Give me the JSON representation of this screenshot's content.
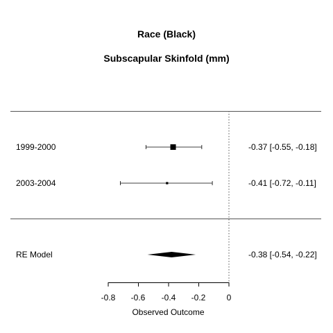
{
  "chart_data": {
    "type": "forest",
    "title": "Race (Black)",
    "subtitle": "Subscapular Skinfold (mm)",
    "xlabel": "Observed Outcome",
    "xlim": [
      -0.8,
      0
    ],
    "ticks": [
      -0.8,
      -0.6,
      -0.4,
      -0.2,
      0
    ],
    "tick_labels": [
      "-0.8",
      "-0.6",
      "-0.4",
      "-0.2",
      "0"
    ],
    "reference_line": 0,
    "studies": [
      {
        "label": "1999-2000",
        "estimate": -0.37,
        "ci_low": -0.55,
        "ci_high": -0.18,
        "weight": 1.0,
        "text": "-0.37 [-0.55, -0.18]"
      },
      {
        "label": "2003-2004",
        "estimate": -0.41,
        "ci_low": -0.72,
        "ci_high": -0.11,
        "weight": 0.2,
        "text": "-0.41 [-0.72, -0.11]"
      }
    ],
    "summary": {
      "label": "RE Model",
      "estimate": -0.38,
      "ci_low": -0.54,
      "ci_high": -0.22,
      "text": "-0.38 [-0.54, -0.22]"
    }
  }
}
